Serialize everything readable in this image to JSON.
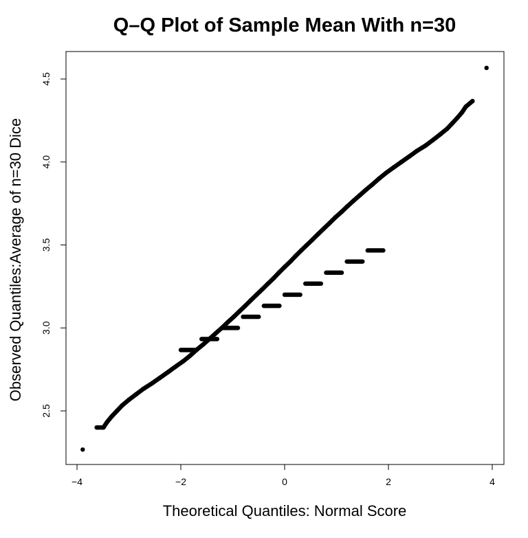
{
  "chart_data": {
    "type": "scatter",
    "title": "Q–Q Plot of Sample Mean With n=30",
    "xlabel": "Theoretical Quantiles: Normal Score",
    "ylabel": "Observed Quantiles:Average of n=30 Dice",
    "xlim": [
      -4,
      4
    ],
    "ylim": [
      2.25,
      4.57
    ],
    "x_ticks": [
      {
        "value": -4,
        "label": "−4"
      },
      {
        "value": -2,
        "label": "−2"
      },
      {
        "value": 0,
        "label": "0"
      },
      {
        "value": 2,
        "label": "2"
      },
      {
        "value": 4,
        "label": "4"
      }
    ],
    "y_ticks": [
      {
        "value": 2.5,
        "label": "2.5"
      },
      {
        "value": 3.0,
        "label": "3.0"
      },
      {
        "value": 3.5,
        "label": "3.5"
      },
      {
        "value": 4.0,
        "label": "4.0"
      },
      {
        "value": 4.5,
        "label": "4.5"
      }
    ],
    "grid": false,
    "point_color": "#000000",
    "series": [
      {
        "points": [
          [
            -3.89,
            2.267
          ],
          [
            -3.62,
            2.4
          ],
          [
            -3.49,
            2.4
          ],
          [
            -3.42,
            2.433
          ],
          [
            -3.33,
            2.467
          ],
          [
            -3.23,
            2.5
          ],
          [
            -3.13,
            2.533
          ],
          [
            -3.0,
            2.567
          ],
          [
            -2.86,
            2.6
          ],
          [
            -2.72,
            2.633
          ],
          [
            -2.55,
            2.667
          ],
          [
            -2.4,
            2.7
          ],
          [
            -2.25,
            2.733
          ],
          [
            -2.1,
            2.767
          ],
          [
            -1.95,
            2.8
          ],
          [
            -1.82,
            2.833
          ],
          [
            -1.7,
            2.867
          ],
          [
            -1.57,
            2.9
          ],
          [
            -1.45,
            2.933
          ],
          [
            -1.33,
            2.967
          ],
          [
            -1.21,
            3.0
          ],
          [
            -1.1,
            3.033
          ],
          [
            -0.98,
            3.067
          ],
          [
            -0.87,
            3.1
          ],
          [
            -0.76,
            3.133
          ],
          [
            -0.65,
            3.167
          ],
          [
            -0.54,
            3.2
          ],
          [
            -0.43,
            3.233
          ],
          [
            -0.32,
            3.267
          ],
          [
            -0.21,
            3.3
          ],
          [
            -0.11,
            3.333
          ],
          [
            0.0,
            3.367
          ],
          [
            0.11,
            3.4
          ],
          [
            0.21,
            3.433
          ],
          [
            0.32,
            3.467
          ],
          [
            0.43,
            3.5
          ],
          [
            0.54,
            3.533
          ],
          [
            0.65,
            3.567
          ],
          [
            0.76,
            3.6
          ],
          [
            0.87,
            3.633
          ],
          [
            0.98,
            3.667
          ],
          [
            1.1,
            3.7
          ],
          [
            1.21,
            3.733
          ],
          [
            1.33,
            3.767
          ],
          [
            1.45,
            3.8
          ],
          [
            1.57,
            3.833
          ],
          [
            1.7,
            3.867
          ],
          [
            1.82,
            3.9
          ],
          [
            1.95,
            3.933
          ],
          [
            2.1,
            3.967
          ],
          [
            2.25,
            4.0
          ],
          [
            2.4,
            4.033
          ],
          [
            2.55,
            4.067
          ],
          [
            2.72,
            4.1
          ],
          [
            2.86,
            4.133
          ],
          [
            3.0,
            4.167
          ],
          [
            3.13,
            4.2
          ],
          [
            3.23,
            4.233
          ],
          [
            3.33,
            4.267
          ],
          [
            3.42,
            4.3
          ],
          [
            3.49,
            4.333
          ],
          [
            3.62,
            4.367
          ],
          [
            3.89,
            4.567
          ]
        ],
        "runs": [
          {
            "x0": -2.0,
            "x1": -1.7,
            "y": 2.867
          },
          {
            "x0": -1.6,
            "x1": -1.3,
            "y": 2.933
          },
          {
            "x0": -1.2,
            "x1": -0.9,
            "y": 3.0
          },
          {
            "x0": -0.8,
            "x1": -0.5,
            "y": 3.067
          },
          {
            "x0": -0.4,
            "x1": -0.1,
            "y": 3.133
          },
          {
            "x0": 0.0,
            "x1": 0.3,
            "y": 3.2
          },
          {
            "x0": 0.4,
            "x1": 0.7,
            "y": 3.267
          },
          {
            "x0": 0.8,
            "x1": 1.1,
            "y": 3.333
          },
          {
            "x0": 1.2,
            "x1": 1.5,
            "y": 3.4
          },
          {
            "x0": 1.6,
            "x1": 1.9,
            "y": 3.467
          }
        ]
      }
    ]
  }
}
